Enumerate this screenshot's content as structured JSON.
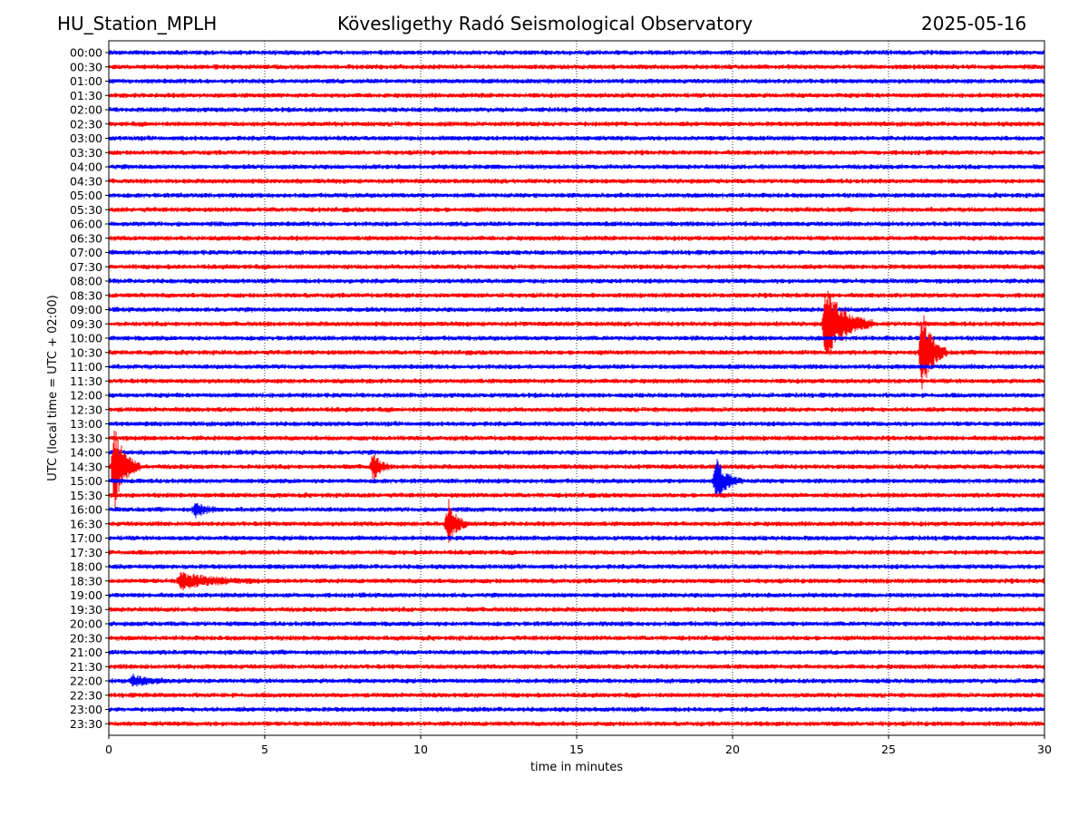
{
  "header": {
    "station": "HU_Station_MPLH",
    "title": "Kövesligethy Radó Seismological Observatory",
    "date": "2025-05-16"
  },
  "chart_data": {
    "type": "line",
    "title": "Kövesligethy Radó Seismological Observatory",
    "xlabel": "time in minutes",
    "ylabel": "UTC (local time = UTC + 02:00)",
    "xlim": [
      0,
      30
    ],
    "x_ticks": [
      "0",
      "5",
      "10",
      "15",
      "20",
      "25",
      "30"
    ],
    "vertical_grid": "dotted at each x tick",
    "row_labels": [
      "00:00",
      "00:30",
      "01:00",
      "01:30",
      "02:00",
      "02:30",
      "03:00",
      "03:30",
      "04:00",
      "04:30",
      "05:00",
      "05:30",
      "06:00",
      "06:30",
      "07:00",
      "07:30",
      "08:00",
      "08:30",
      "09:00",
      "09:30",
      "10:00",
      "10:30",
      "11:00",
      "11:30",
      "12:00",
      "12:30",
      "13:00",
      "13:30",
      "14:00",
      "14:30",
      "15:00",
      "15:30",
      "16:00",
      "16:30",
      "17:00",
      "17:30",
      "18:00",
      "18:30",
      "19:00",
      "19:30",
      "20:00",
      "20:30",
      "21:00",
      "21:30",
      "22:00",
      "22:30",
      "23:00",
      "23:30"
    ],
    "row_colors": [
      "#0000ff",
      "#ff0000"
    ],
    "events": [
      {
        "row": "09:30",
        "minute": 23.0,
        "amplitude": 0.9,
        "duration_min": 1.5
      },
      {
        "row": "10:30",
        "minute": 26.1,
        "amplitude": 1.0,
        "duration_min": 0.8
      },
      {
        "row": "14:30",
        "minute": 0.2,
        "amplitude": 1.0,
        "duration_min": 0.8
      },
      {
        "row": "14:30",
        "minute": 8.5,
        "amplitude": 0.35,
        "duration_min": 0.5
      },
      {
        "row": "15:00",
        "minute": 19.5,
        "amplitude": 0.5,
        "duration_min": 0.8
      },
      {
        "row": "16:00",
        "minute": 2.8,
        "amplitude": 0.15,
        "duration_min": 0.8
      },
      {
        "row": "16:30",
        "minute": 10.9,
        "amplitude": 0.55,
        "duration_min": 0.6
      },
      {
        "row": "18:30",
        "minute": 2.3,
        "amplitude": 0.18,
        "duration_min": 2.5
      },
      {
        "row": "22:00",
        "minute": 0.8,
        "amplitude": 0.12,
        "duration_min": 1.2
      }
    ]
  }
}
